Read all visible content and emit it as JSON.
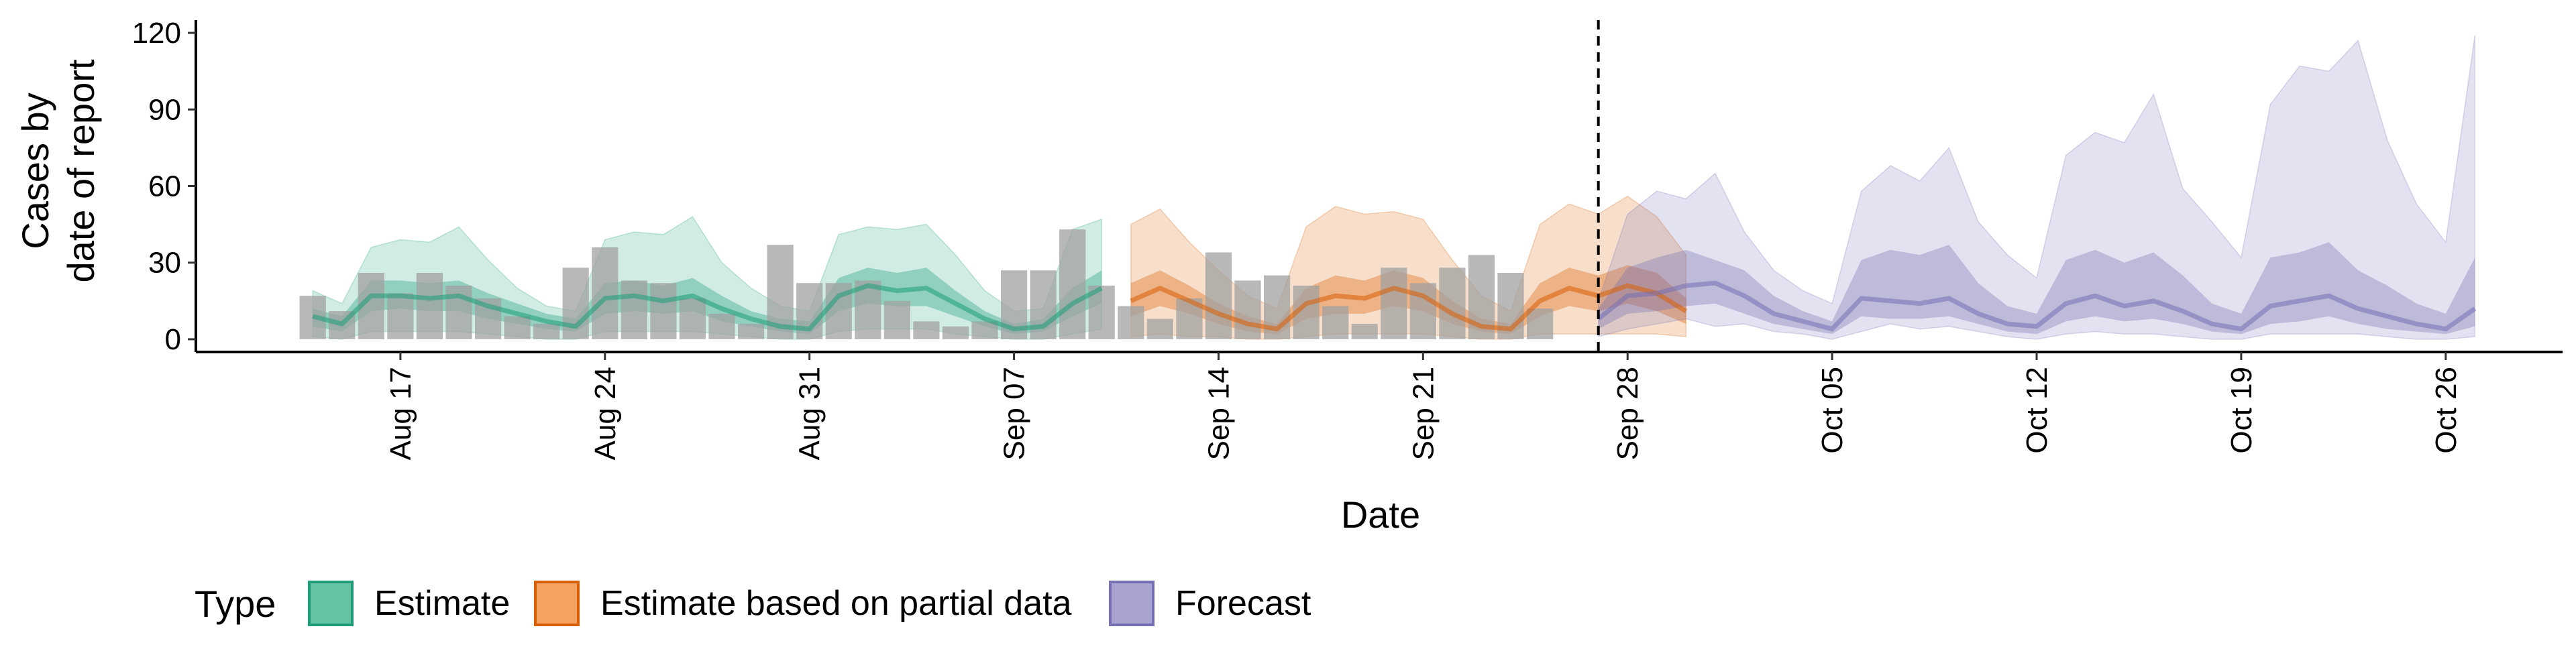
{
  "chart_data": {
    "type": "area",
    "xlabel": "Date",
    "ylabel_lines": [
      "Cases by",
      "date of report"
    ],
    "y_ticks": [
      0,
      30,
      60,
      90,
      120
    ],
    "ylim": [
      -5,
      125
    ],
    "date_range": [
      "2020-08-10",
      "2020-10-30"
    ],
    "x_ticks": [
      {
        "date": "2020-08-17",
        "label": "Aug 17"
      },
      {
        "date": "2020-08-24",
        "label": "Aug 24"
      },
      {
        "date": "2020-08-31",
        "label": "Aug 31"
      },
      {
        "date": "2020-09-07",
        "label": "Sep 07"
      },
      {
        "date": "2020-09-14",
        "label": "Sep 14"
      },
      {
        "date": "2020-09-21",
        "label": "Sep 21"
      },
      {
        "date": "2020-09-28",
        "label": "Sep 28"
      },
      {
        "date": "2020-10-05",
        "label": "Oct 05"
      },
      {
        "date": "2020-10-12",
        "label": "Oct 12"
      },
      {
        "date": "2020-10-19",
        "label": "Oct 19"
      },
      {
        "date": "2020-10-26",
        "label": "Oct 26"
      }
    ],
    "forecast_start_line": "2020-09-27",
    "grid": false,
    "legend": {
      "title": "Type",
      "position": "bottom-left",
      "items": [
        {
          "key": "estimate",
          "label": "Estimate",
          "fill": "#66c2a4",
          "stroke": "#1b9e77"
        },
        {
          "key": "partial",
          "label": "Estimate based on partial data",
          "fill": "#f4a261",
          "stroke": "#d95f02"
        },
        {
          "key": "forecast",
          "label": "Forecast",
          "fill": "#a9a3d1",
          "stroke": "#7570b3"
        }
      ]
    },
    "colors": {
      "estimate": "#1b9e77",
      "partial": "#d95f02",
      "forecast": "#7570b3",
      "bars": "#a0a0a0",
      "axis": "#000000"
    },
    "bars": {
      "start": "2020-08-14",
      "values": [
        17,
        11,
        26,
        18,
        26,
        21,
        16,
        9,
        6,
        28,
        36,
        23,
        22,
        16,
        10,
        6,
        37,
        22,
        22,
        23,
        15,
        7,
        5,
        7,
        27,
        27,
        43,
        21,
        13,
        8,
        16,
        34,
        23,
        25,
        21,
        13,
        6,
        28,
        22,
        28,
        33,
        26,
        12
      ]
    },
    "series": [
      {
        "key": "estimate",
        "start": "2020-08-14",
        "median": [
          9,
          6,
          17,
          17,
          16,
          17,
          13,
          10,
          7,
          5,
          16,
          17,
          15,
          17,
          12,
          8,
          5,
          4,
          17,
          21,
          19,
          20,
          14,
          8,
          4,
          5,
          14,
          20
        ],
        "inner_lo": [
          5,
          3,
          11,
          12,
          11,
          11,
          8,
          6,
          4,
          3,
          10,
          11,
          10,
          11,
          7,
          5,
          3,
          2,
          11,
          14,
          13,
          13,
          9,
          5,
          2,
          3,
          9,
          14
        ],
        "inner_hi": [
          12,
          9,
          23,
          23,
          22,
          23,
          18,
          14,
          10,
          8,
          22,
          23,
          21,
          24,
          17,
          11,
          8,
          7,
          24,
          28,
          26,
          28,
          19,
          11,
          6,
          8,
          20,
          27
        ],
        "outer_lo": [
          1,
          0,
          3,
          3,
          3,
          3,
          2,
          1,
          0,
          0,
          3,
          3,
          3,
          3,
          2,
          1,
          0,
          0,
          3,
          4,
          4,
          4,
          2,
          1,
          0,
          0,
          2,
          4
        ],
        "outer_hi": [
          19,
          14,
          36,
          39,
          38,
          44,
          31,
          20,
          13,
          11,
          39,
          42,
          41,
          48,
          30,
          20,
          13,
          11,
          41,
          44,
          43,
          45,
          33,
          19,
          11,
          12,
          43,
          47
        ]
      },
      {
        "key": "partial",
        "start": "2020-09-11",
        "median": [
          15,
          20,
          15,
          10,
          6,
          4,
          14,
          17,
          16,
          20,
          17,
          10,
          5,
          4,
          15,
          20,
          17,
          21,
          18,
          11
        ],
        "inner_lo": [
          9,
          13,
          10,
          6,
          3,
          2,
          8,
          10,
          10,
          13,
          11,
          6,
          3,
          2,
          9,
          13,
          11,
          14,
          11,
          6
        ],
        "inner_hi": [
          22,
          27,
          21,
          14,
          9,
          6,
          20,
          25,
          23,
          27,
          24,
          15,
          8,
          6,
          22,
          28,
          25,
          29,
          26,
          16
        ],
        "outer_lo": [
          1,
          2,
          1,
          1,
          0,
          0,
          1,
          2,
          2,
          2,
          2,
          1,
          0,
          0,
          2,
          2,
          2,
          2,
          2,
          1
        ],
        "outer_hi": [
          45,
          51,
          38,
          27,
          17,
          12,
          44,
          52,
          49,
          50,
          47,
          31,
          17,
          11,
          45,
          53,
          49,
          56,
          48,
          33
        ]
      },
      {
        "key": "forecast",
        "start": "2020-09-27",
        "median": [
          8,
          17,
          18,
          21,
          22,
          17,
          10,
          7,
          4,
          16,
          15,
          14,
          16,
          10,
          6,
          5,
          14,
          17,
          13,
          15,
          11,
          6,
          4,
          13,
          15,
          17,
          12,
          9,
          6,
          4,
          12
        ],
        "inner_lo": [
          4,
          10,
          11,
          13,
          14,
          10,
          6,
          4,
          2,
          9,
          8,
          8,
          9,
          6,
          3,
          2,
          7,
          9,
          7,
          8,
          6,
          3,
          2,
          6,
          7,
          9,
          6,
          4,
          3,
          2,
          5
        ],
        "inner_hi": [
          12,
          28,
          32,
          35,
          31,
          27,
          17,
          11,
          7,
          31,
          35,
          33,
          37,
          22,
          13,
          10,
          31,
          35,
          30,
          34,
          25,
          14,
          10,
          32,
          34,
          38,
          27,
          21,
          14,
          10,
          32
        ],
        "outer_lo": [
          1,
          4,
          6,
          8,
          5,
          6,
          3,
          2,
          0,
          3,
          6,
          4,
          5,
          3,
          1,
          0,
          2,
          3,
          2,
          2,
          1,
          0,
          0,
          2,
          2,
          2,
          2,
          1,
          0,
          0,
          1
        ],
        "outer_hi": [
          15,
          49,
          58,
          55,
          65,
          42,
          27,
          19,
          14,
          58,
          68,
          62,
          75,
          46,
          33,
          24,
          72,
          81,
          77,
          96,
          59,
          46,
          32,
          92,
          107,
          105,
          117,
          78,
          53,
          38,
          119
        ]
      }
    ]
  }
}
